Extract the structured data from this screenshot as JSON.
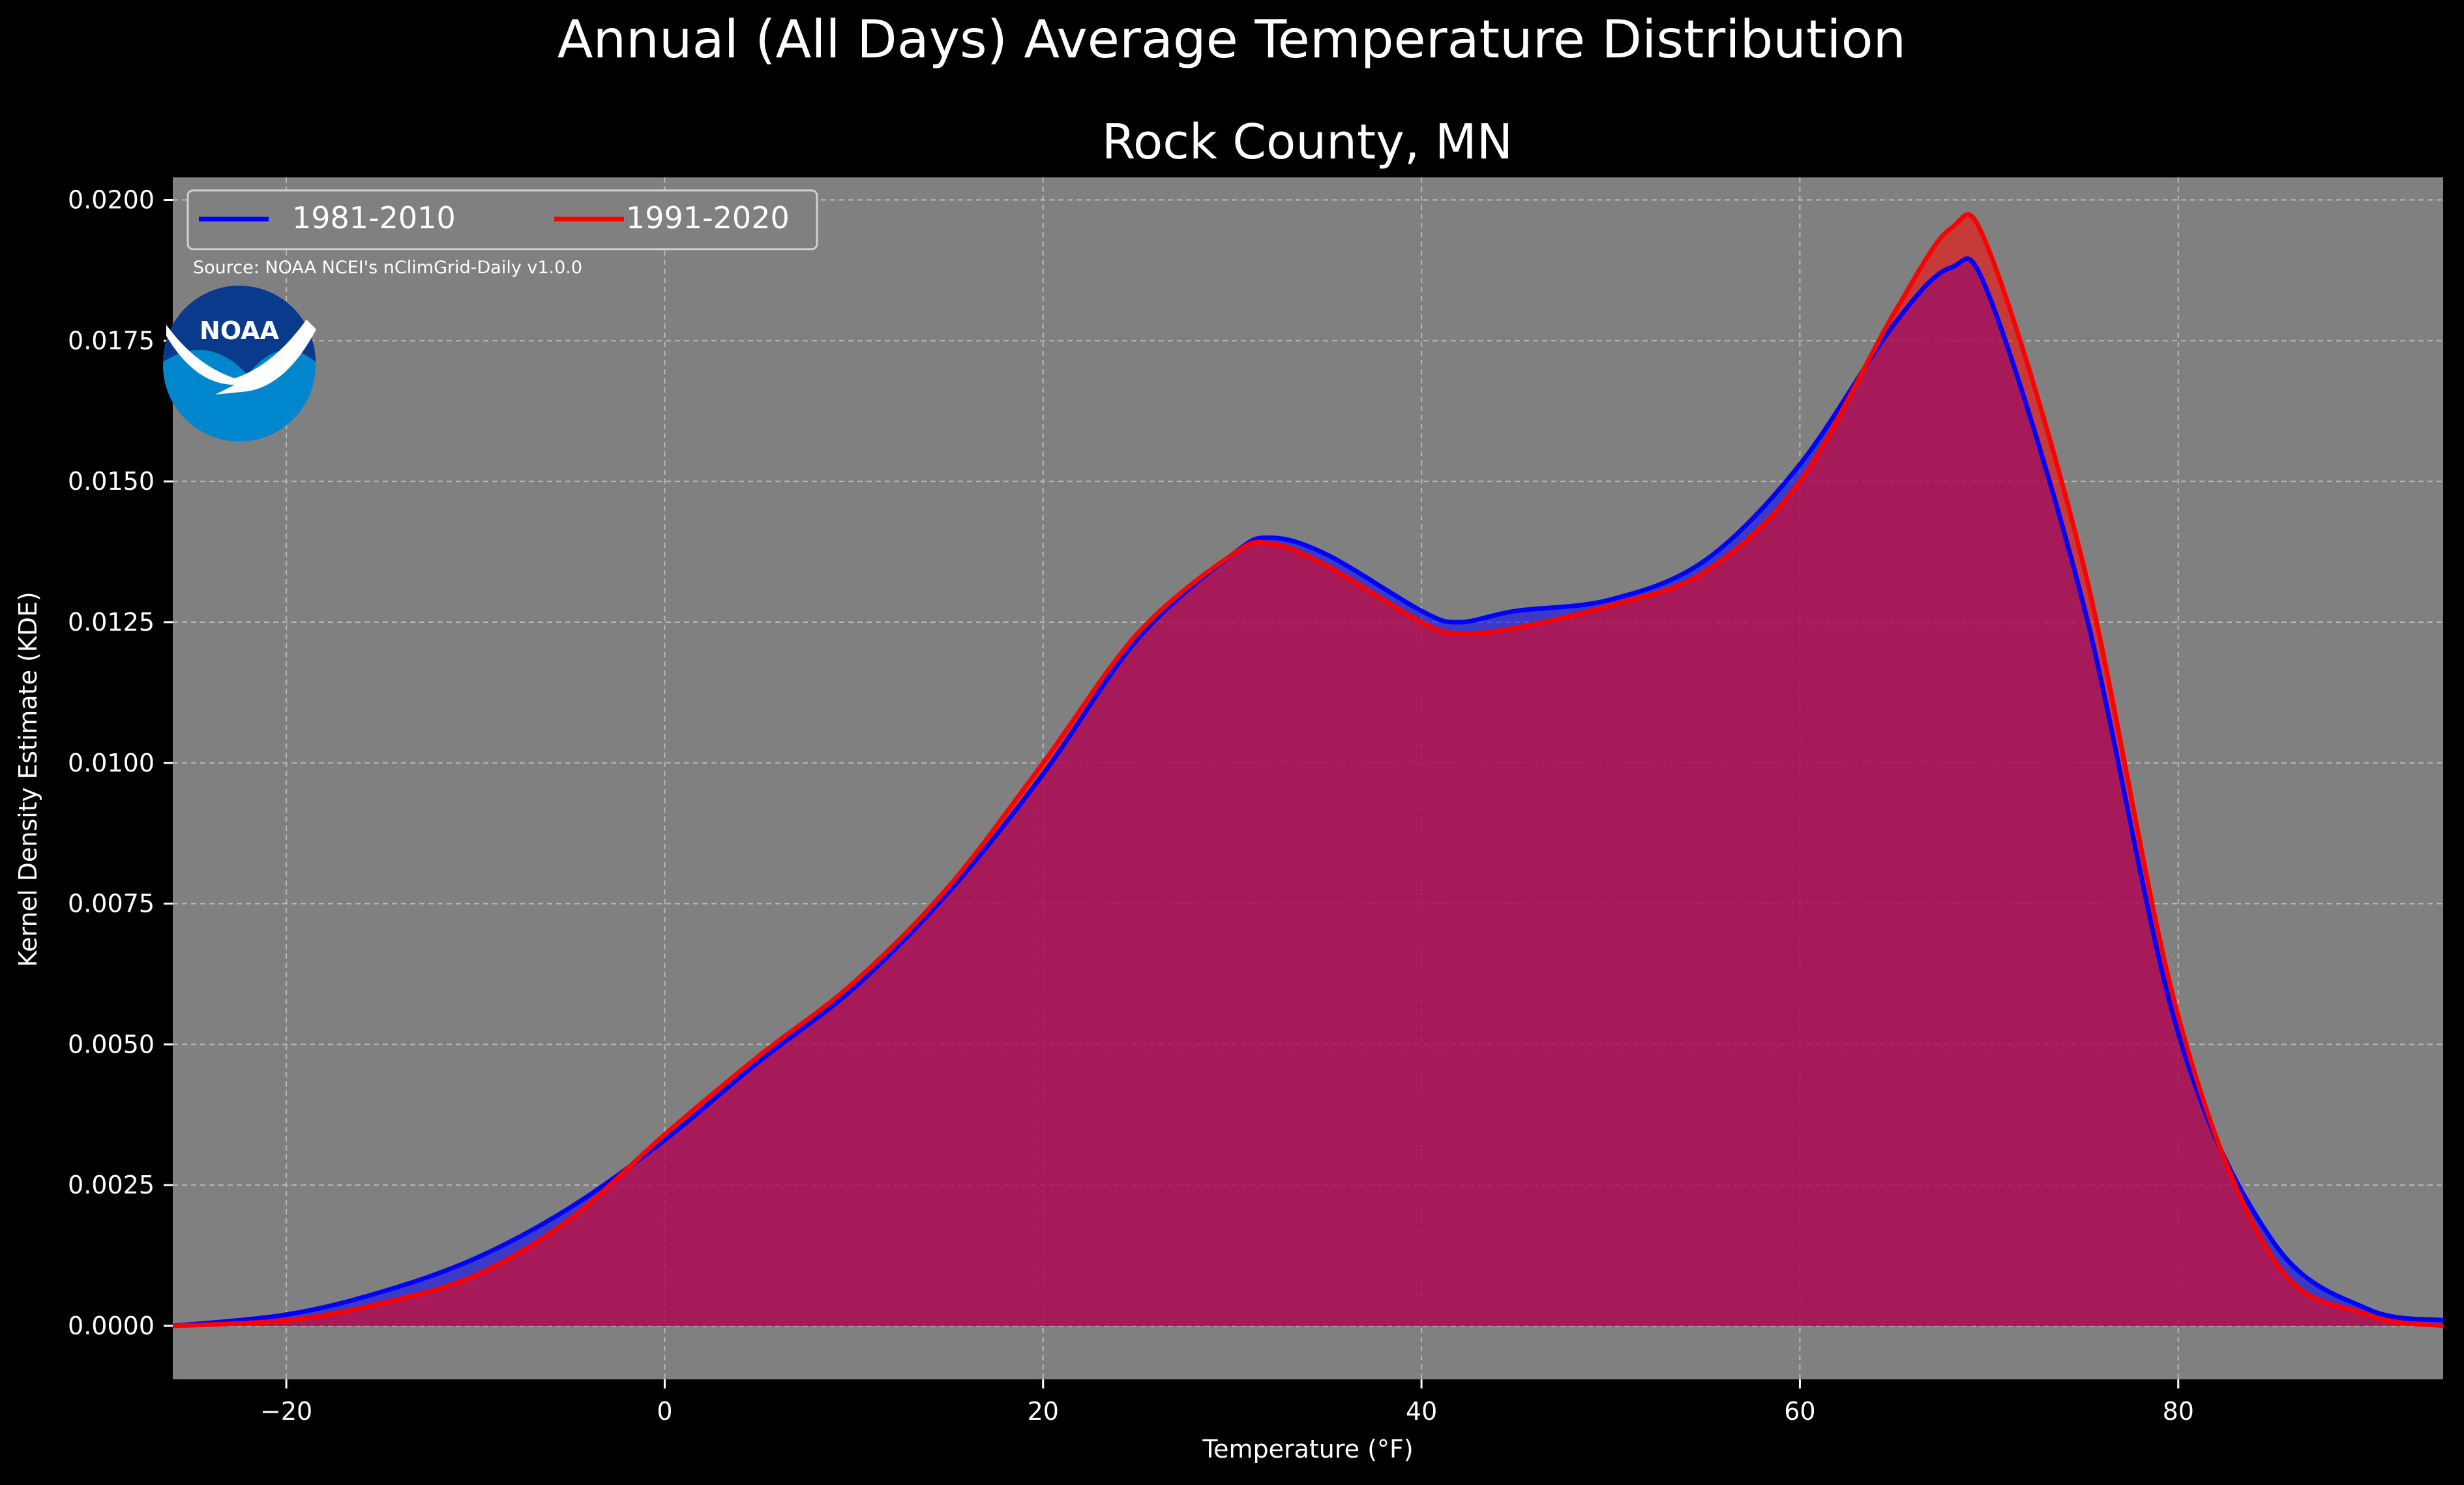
{
  "suptitle": "Annual (All Days) Average Temperature Distribution",
  "source_note": "Source: NOAA NCEI's nClimGrid-Daily v1.0.0",
  "logo": {
    "text": "NOAA",
    "icon": "noaa-logo-icon"
  },
  "colors": {
    "background": "#000000",
    "plot_bg": "#808080",
    "series1": "#0000ff",
    "series2": "#ff0000",
    "overlap": "#9e1e5a"
  },
  "chart_data": {
    "type": "area",
    "title": "Rock County, MN",
    "xlabel": "Temperature (°F)",
    "ylabel": "Kernel Density Estimate (KDE)",
    "xlim": [
      -26,
      94
    ],
    "ylim": [
      -0.00095,
      0.0204
    ],
    "xticks": [
      -20,
      0,
      20,
      40,
      60,
      80
    ],
    "xtick_labels": [
      "−20",
      "0",
      "20",
      "40",
      "60",
      "80"
    ],
    "yticks": [
      0,
      0.0025,
      0.005,
      0.0075,
      0.01,
      0.0125,
      0.015,
      0.0175,
      0.02
    ],
    "ytick_labels": [
      "0.0000",
      "0.0025",
      "0.0050",
      "0.0075",
      "0.0100",
      "0.0125",
      "0.0150",
      "0.0175",
      "0.0200"
    ],
    "grid": true,
    "legend_position": "top-left",
    "series": [
      {
        "name": "1981-2010",
        "x": [
          -26,
          -20,
          -15,
          -10,
          -5,
          0,
          5,
          10,
          15,
          20,
          25,
          30,
          32,
          35,
          40,
          42,
          45,
          50,
          55,
          60,
          65,
          68,
          70,
          75,
          80,
          85,
          90,
          94
        ],
        "y": [
          0.0,
          0.0002,
          0.0006,
          0.0012,
          0.0021,
          0.0033,
          0.0047,
          0.006,
          0.0077,
          0.0098,
          0.0122,
          0.0137,
          0.014,
          0.0137,
          0.0127,
          0.0125,
          0.0127,
          0.0129,
          0.0136,
          0.0153,
          0.0178,
          0.0188,
          0.0183,
          0.0128,
          0.0052,
          0.0015,
          0.0003,
          0.0001
        ]
      },
      {
        "name": "1991-2020",
        "x": [
          -26,
          -20,
          -15,
          -10,
          -5,
          0,
          5,
          10,
          15,
          20,
          25,
          30,
          32,
          35,
          40,
          42,
          45,
          50,
          55,
          60,
          65,
          68,
          70,
          75,
          80,
          85,
          90,
          94
        ],
        "y": [
          0.0,
          0.0001,
          0.0004,
          0.0009,
          0.0019,
          0.0034,
          0.0048,
          0.0061,
          0.0078,
          0.01,
          0.0123,
          0.0137,
          0.0139,
          0.0135,
          0.0125,
          0.0123,
          0.0124,
          0.0128,
          0.0134,
          0.015,
          0.018,
          0.0195,
          0.0191,
          0.0135,
          0.0055,
          0.0012,
          0.0002,
          0.0
        ]
      }
    ]
  }
}
